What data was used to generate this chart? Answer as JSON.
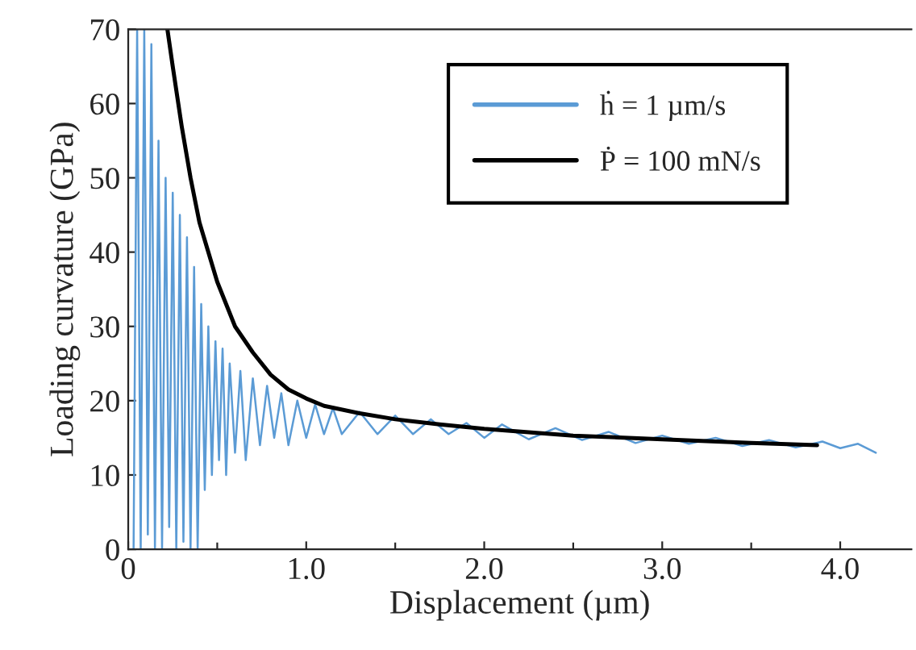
{
  "chart_data": {
    "type": "line",
    "xlabel": "Displacement (µm)",
    "ylabel": "Loading curvature (GPa)",
    "xlim": [
      0,
      4.4
    ],
    "ylim": [
      0,
      70
    ],
    "xticks": [
      0,
      {
        "value": 0.5,
        "label": null
      },
      {
        "value": 1.0,
        "label": "1.0"
      },
      {
        "value": 1.5,
        "label": null
      },
      {
        "value": 2.0,
        "label": "2.0"
      },
      {
        "value": 2.5,
        "label": null
      },
      {
        "value": 3.0,
        "label": "3.0"
      },
      {
        "value": 3.5,
        "label": null
      },
      {
        "value": 4.0,
        "label": "4.0"
      }
    ],
    "yticks": [
      0,
      10,
      20,
      30,
      40,
      50,
      60,
      70
    ],
    "grid": false,
    "legend": "top right",
    "marker": "none",
    "line_style": "solid",
    "series": [
      {
        "name": "ḣ = 1 µm/s",
        "color": "#5b9bd5",
        "x": [
          0.03,
          0.05,
          0.07,
          0.09,
          0.11,
          0.13,
          0.15,
          0.17,
          0.19,
          0.21,
          0.23,
          0.25,
          0.27,
          0.29,
          0.31,
          0.33,
          0.35,
          0.37,
          0.39,
          0.41,
          0.43,
          0.45,
          0.47,
          0.49,
          0.51,
          0.53,
          0.55,
          0.57,
          0.6,
          0.63,
          0.66,
          0.7,
          0.74,
          0.78,
          0.82,
          0.86,
          0.9,
          0.95,
          1.0,
          1.05,
          1.1,
          1.15,
          1.2,
          1.3,
          1.4,
          1.5,
          1.6,
          1.7,
          1.8,
          1.9,
          2.0,
          2.1,
          2.25,
          2.4,
          2.55,
          2.7,
          2.85,
          3.0,
          3.15,
          3.3,
          3.45,
          3.6,
          3.75,
          3.9,
          4.0,
          4.1,
          4.2
        ],
        "values": [
          0,
          70,
          0,
          70,
          2,
          68,
          0,
          55,
          0,
          50,
          3,
          48,
          0,
          45,
          1,
          42,
          0,
          38,
          0,
          33,
          8,
          30,
          10,
          28,
          12,
          27,
          10,
          25,
          13,
          24,
          12,
          23,
          14,
          22,
          15,
          21,
          14,
          20,
          15,
          19.5,
          15.5,
          19,
          15.5,
          18.5,
          15.5,
          18,
          15.5,
          17.5,
          15.5,
          17,
          15,
          16.8,
          14.8,
          16.3,
          14.7,
          15.8,
          14.3,
          15.3,
          14.2,
          15,
          13.9,
          14.7,
          13.7,
          14.5,
          13.6,
          14.2,
          13
        ]
      },
      {
        "name": "Ṗ = 100 mN/s",
        "color": "#000000",
        "x": [
          0.22,
          0.25,
          0.3,
          0.35,
          0.4,
          0.5,
          0.6,
          0.7,
          0.8,
          0.9,
          1.0,
          1.1,
          1.3,
          1.5,
          1.75,
          2.0,
          2.5,
          3.0,
          3.5,
          3.87
        ],
        "values": [
          70,
          65,
          57,
          50,
          44,
          36,
          30,
          26.5,
          23.5,
          21.5,
          20.3,
          19.3,
          18.3,
          17.5,
          16.8,
          16.2,
          15.3,
          14.8,
          14.3,
          14.0
        ]
      }
    ]
  }
}
